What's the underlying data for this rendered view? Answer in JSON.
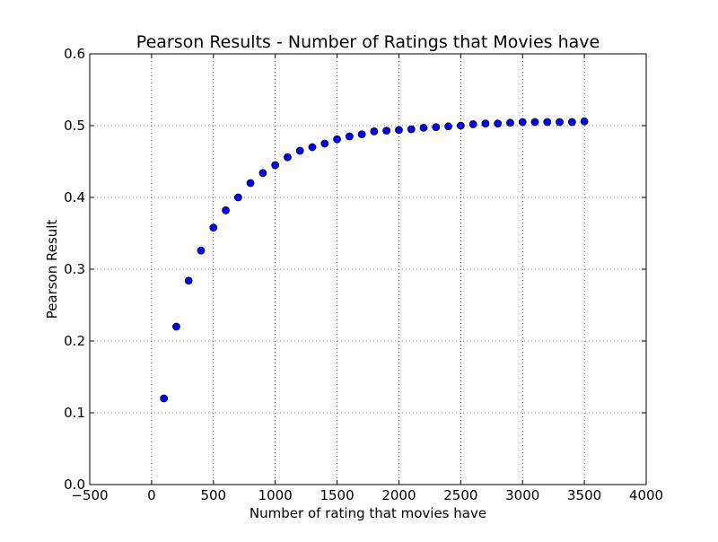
{
  "chart_data": {
    "type": "scatter",
    "title": "Pearson Results - Number of Ratings that Movies have",
    "xlabel": "Number of rating that movies have",
    "ylabel": "Pearson Result",
    "xlim": [
      -500,
      4000
    ],
    "ylim": [
      0.0,
      0.6
    ],
    "xticks": [
      -500,
      0,
      500,
      1000,
      1500,
      2000,
      2500,
      3000,
      3500,
      4000
    ],
    "xtick_labels": [
      "−500",
      "0",
      "500",
      "1000",
      "1500",
      "2000",
      "2500",
      "3000",
      "3500",
      "4000"
    ],
    "yticks": [
      0.0,
      0.1,
      0.2,
      0.3,
      0.4,
      0.5,
      0.6
    ],
    "ytick_labels": [
      "0.0",
      "0.1",
      "0.2",
      "0.3",
      "0.4",
      "0.5",
      "0.6"
    ],
    "grid": true,
    "marker_color": "#0000ff",
    "marker_edge_color": "#000000",
    "x": [
      100,
      200,
      300,
      400,
      500,
      600,
      700,
      800,
      900,
      1000,
      1100,
      1200,
      1300,
      1400,
      1500,
      1600,
      1700,
      1800,
      1900,
      2000,
      2100,
      2200,
      2300,
      2400,
      2500,
      2600,
      2700,
      2800,
      2900,
      3000,
      3100,
      3200,
      3300,
      3400,
      3500
    ],
    "y": [
      0.12,
      0.22,
      0.284,
      0.326,
      0.358,
      0.382,
      0.4,
      0.42,
      0.434,
      0.445,
      0.456,
      0.465,
      0.47,
      0.475,
      0.481,
      0.485,
      0.488,
      0.492,
      0.493,
      0.494,
      0.495,
      0.497,
      0.498,
      0.499,
      0.5,
      0.502,
      0.503,
      0.503,
      0.504,
      0.505,
      0.505,
      0.505,
      0.505,
      0.505,
      0.506
    ]
  }
}
